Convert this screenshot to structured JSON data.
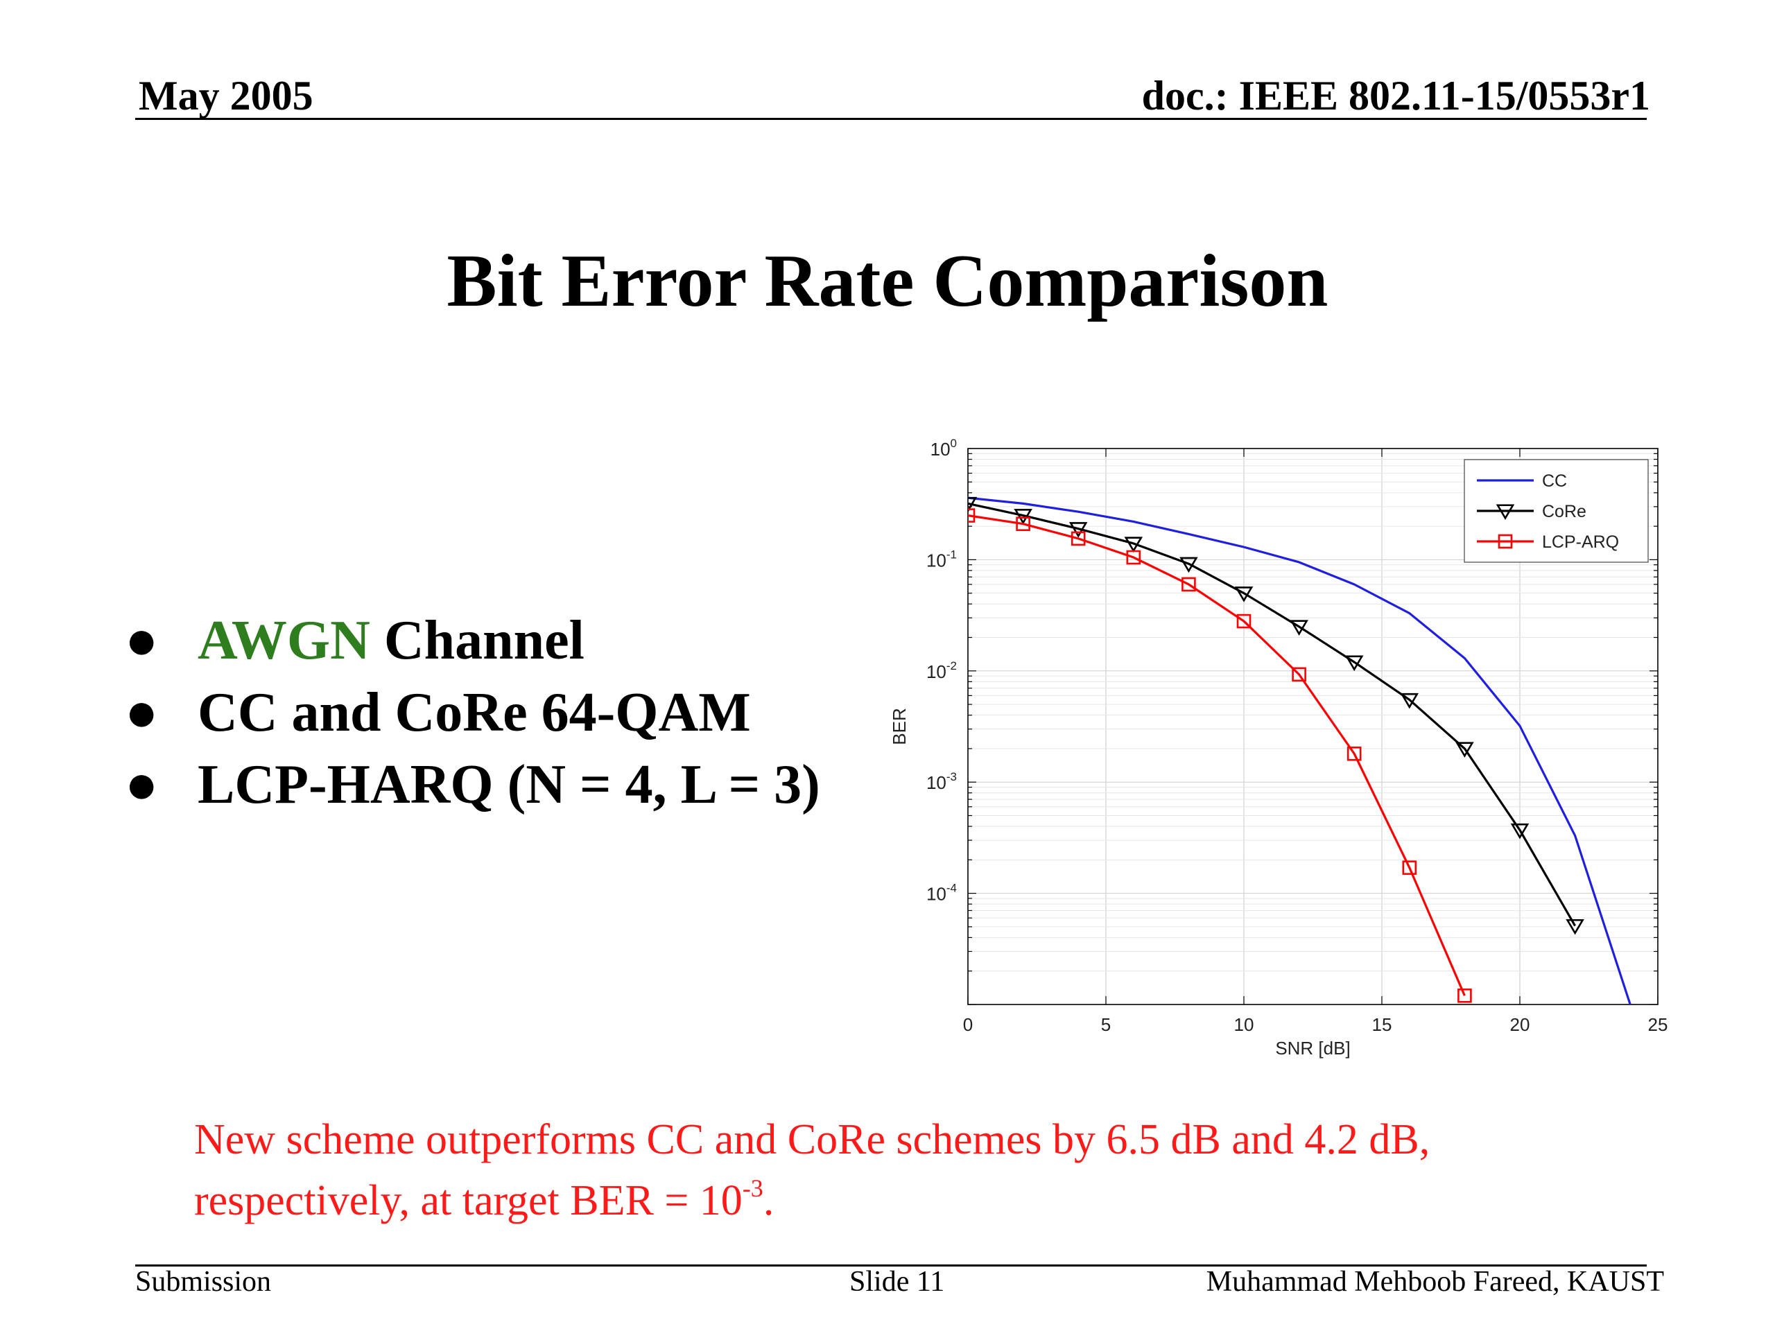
{
  "header": {
    "date": "May 2005",
    "doc": "doc.: IEEE 802.11-15/0553r1"
  },
  "slide": {
    "title": "Bit Error Rate Comparison",
    "bullets": [
      {
        "highlight": "AWGN",
        "text": " Channel"
      },
      {
        "highlight": "",
        "text": "CC and CoRe 64-QAM"
      },
      {
        "highlight": "",
        "text": "LCP-HARQ (N = 4, L = 3)"
      }
    ],
    "bullet_symbol": "●",
    "conclusion": {
      "line1": "New scheme outperforms CC and CoRe schemes by 6.5 dB and 4.2 dB,",
      "line2_prefix": "respectively, at target BER = 10",
      "line2_sup": "-3",
      "line2_suffix": "."
    }
  },
  "footer": {
    "left": "Submission",
    "center": "Slide 11",
    "right": "Muhammad Mehboob Fareed, KAUST"
  },
  "colors": {
    "accent_green": "#2e7d1e",
    "conclusion_red": "#ff1a1a"
  },
  "chart_data": {
    "type": "line",
    "title": "",
    "xlabel": "SNR [dB]",
    "ylabel": "BER",
    "xlim": [
      0,
      25
    ],
    "ylim_log10": [
      -5,
      0
    ],
    "y_scale": "log",
    "grid": true,
    "legend_position": "top-right",
    "xticks": [
      0,
      5,
      10,
      15,
      20,
      25
    ],
    "yticks_exp": [
      0,
      -1,
      -2,
      -3,
      -4
    ],
    "series": [
      {
        "name": "CC",
        "color": "#1f1fe0",
        "marker": "none",
        "x": [
          0,
          2,
          4,
          6,
          8,
          10,
          12,
          14,
          16,
          18,
          20,
          22,
          24
        ],
        "y": [
          0.36,
          0.32,
          0.27,
          0.22,
          0.17,
          0.13,
          0.095,
          0.06,
          0.033,
          0.013,
          0.0032,
          0.00033,
          1e-05
        ]
      },
      {
        "name": "CoRe",
        "color": "#000000",
        "marker": "triangle-down",
        "x": [
          0,
          2,
          4,
          6,
          8,
          10,
          12,
          14,
          16,
          18,
          20,
          22
        ],
        "y": [
          0.32,
          0.25,
          0.19,
          0.14,
          0.092,
          0.05,
          0.025,
          0.012,
          0.0055,
          0.002,
          0.00037,
          5.1e-05
        ]
      },
      {
        "name": "LCP-ARQ",
        "color": "#ff0000",
        "marker": "square",
        "x": [
          0,
          2,
          4,
          6,
          8,
          10,
          12,
          14,
          16,
          18
        ],
        "y": [
          0.25,
          0.21,
          0.155,
          0.105,
          0.06,
          0.028,
          0.0093,
          0.0018,
          0.00017,
          1.2e-05
        ]
      }
    ]
  }
}
